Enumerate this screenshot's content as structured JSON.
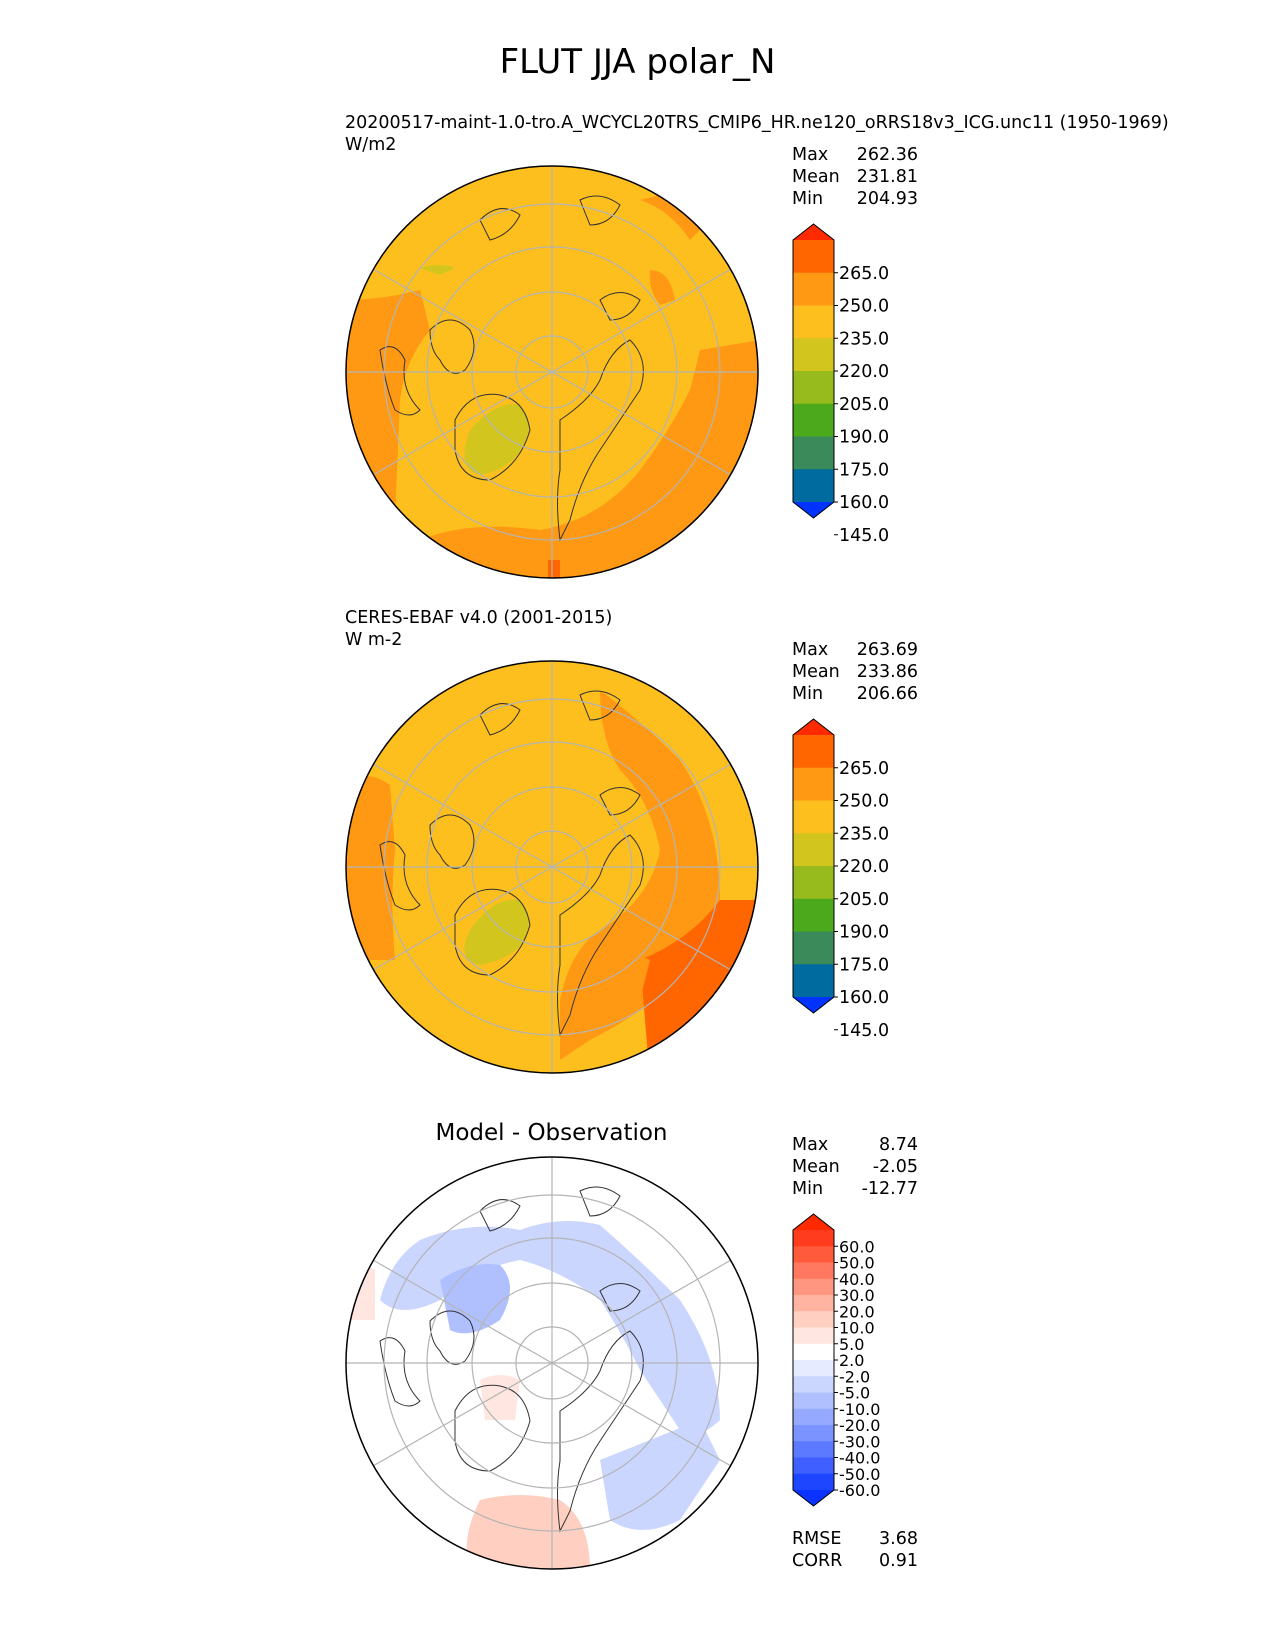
{
  "figure": {
    "title": "FLUT JJA polar_N"
  },
  "panels": [
    {
      "id": "model",
      "label": "20200517-maint-1.0-tro.A_WCYCL20TRS_CMIP6_HR.ne120_oRRS18v3_ICG.unc11 (1950-1969)",
      "units": "W/m2",
      "stats": {
        "max_label": "Max",
        "max": "262.36",
        "mean_label": "Mean",
        "mean": "231.81",
        "min_label": "Min",
        "min": "204.93"
      },
      "colorbar": {
        "levels": [
          "265.0",
          "250.0",
          "235.0",
          "220.0",
          "205.0",
          "190.0",
          "175.0",
          "160.0",
          "145.0"
        ],
        "colors": [
          "#ff2a00",
          "#ff6600",
          "#ff9914",
          "#fdbf1e",
          "#d2c61e",
          "#97bb1c",
          "#4ca91c",
          "#3a8a5a",
          "#006b9e",
          "#0033ff"
        ]
      }
    },
    {
      "id": "obs",
      "label": "CERES-EBAF v4.0 (2001-2015)",
      "units": "W m-2",
      "stats": {
        "max_label": "Max",
        "max": "263.69",
        "mean_label": "Mean",
        "mean": "233.86",
        "min_label": "Min",
        "min": "206.66"
      },
      "colorbar": {
        "levels": [
          "265.0",
          "250.0",
          "235.0",
          "220.0",
          "205.0",
          "190.0",
          "175.0",
          "160.0",
          "145.0"
        ],
        "colors": [
          "#ff2a00",
          "#ff6600",
          "#ff9914",
          "#fdbf1e",
          "#d2c61e",
          "#97bb1c",
          "#4ca91c",
          "#3a8a5a",
          "#006b9e",
          "#0033ff"
        ]
      }
    },
    {
      "id": "diff",
      "title": "Model - Observation",
      "stats": {
        "max_label": "Max",
        "max": "8.74",
        "mean_label": "Mean",
        "mean": "-2.05",
        "min_label": "Min",
        "min": "-12.77"
      },
      "metrics": {
        "rmse_label": "RMSE",
        "rmse": "3.68",
        "corr_label": "CORR",
        "corr": "0.91"
      },
      "colorbar": {
        "levels": [
          "60.0",
          "50.0",
          "40.0",
          "30.0",
          "20.0",
          "10.0",
          "5.0",
          "2.0",
          "-2.0",
          "-5.0",
          "-10.0",
          "-20.0",
          "-30.0",
          "-40.0",
          "-50.0",
          "-60.0"
        ],
        "colors": [
          "#ff2a00",
          "#ff3c1e",
          "#ff5a3c",
          "#ff785f",
          "#ff9680",
          "#ffb4a2",
          "#ffcfc2",
          "#ffe6e0",
          "#ffffff",
          "#e6ebff",
          "#cbd6ff",
          "#b0c0ff",
          "#95a9ff",
          "#7a93ff",
          "#5c7aff",
          "#3f5fff",
          "#1e45ff",
          "#0a33ff"
        ]
      }
    }
  ]
}
